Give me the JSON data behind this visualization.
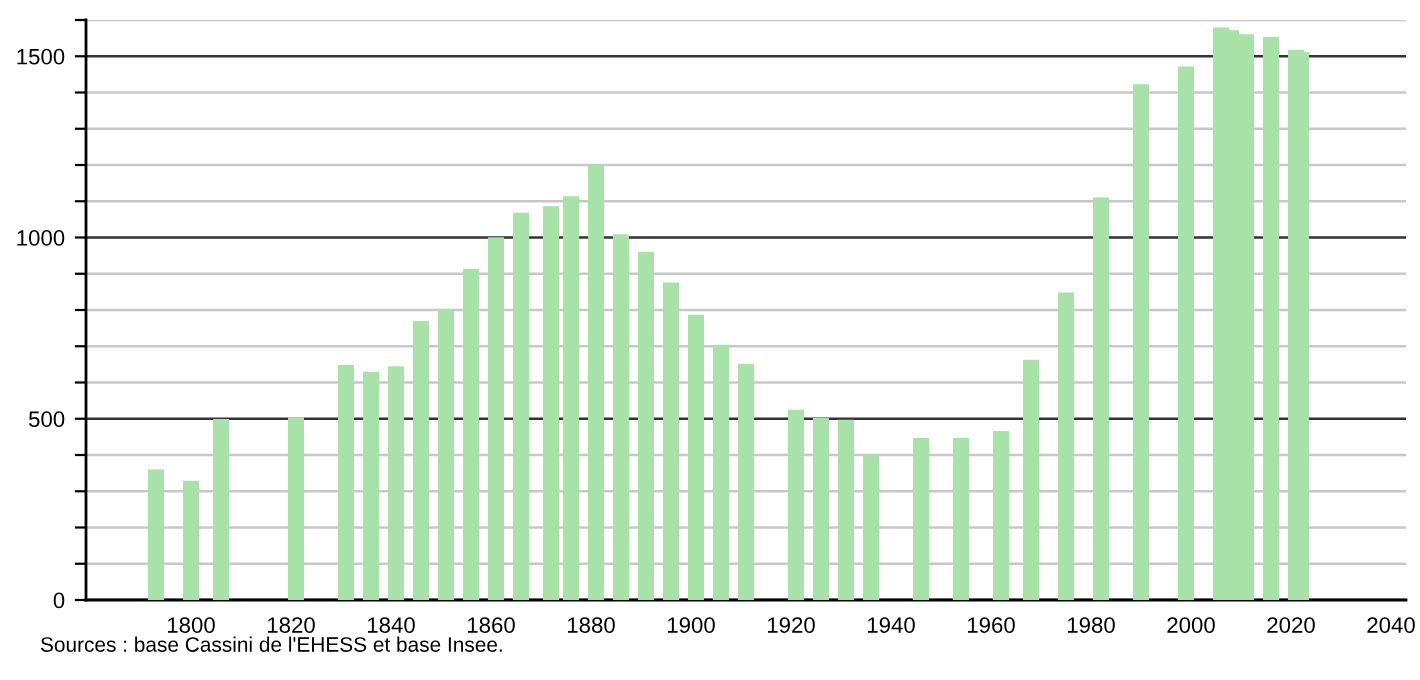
{
  "chart_data": {
    "type": "bar",
    "x": [
      1793,
      1800,
      1806,
      1821,
      1831,
      1836,
      1841,
      1846,
      1851,
      1856,
      1861,
      1866,
      1872,
      1876,
      1881,
      1886,
      1891,
      1896,
      1901,
      1906,
      1911,
      1921,
      1926,
      1931,
      1936,
      1946,
      1954,
      1962,
      1968,
      1975,
      1982,
      1990,
      1999,
      2006,
      2008,
      2011,
      2016,
      2021,
      2022
    ],
    "values": [
      360,
      329,
      499,
      504,
      648,
      630,
      645,
      770,
      802,
      913,
      1001,
      1068,
      1086,
      1114,
      1201,
      1009,
      961,
      876,
      787,
      704,
      652,
      525,
      502,
      497,
      401,
      447,
      447,
      466,
      663,
      848,
      1110,
      1423,
      1472,
      1579,
      1572,
      1561,
      1553,
      1518,
      1511
    ],
    "color": "#a8e2a8",
    "xlim": [
      1779,
      2043
    ],
    "xticks": [
      1800,
      1820,
      1840,
      1860,
      1880,
      1900,
      1920,
      1940,
      1960,
      1980,
      2000,
      2020,
      2040
    ],
    "ylim": [
      0,
      1600
    ],
    "yticks": [
      0,
      {
        "value": 100,
        "label": null
      },
      {
        "value": 200,
        "label": null
      },
      {
        "value": 300,
        "label": null
      },
      {
        "value": 400,
        "label": null
      },
      500,
      {
        "value": 600,
        "label": null
      },
      {
        "value": 700,
        "label": null
      },
      {
        "value": 800,
        "label": null
      },
      {
        "value": 900,
        "label": null
      },
      1000,
      {
        "value": 1100,
        "label": null
      },
      {
        "value": 1200,
        "label": null
      },
      {
        "value": 1300,
        "label": null
      },
      {
        "value": 1400,
        "label": null
      },
      1500,
      {
        "value": 1600,
        "label": null
      }
    ],
    "grid": "y",
    "legend": false,
    "annotations": [
      "Sources : base Cassini de l'EHESS et base Insee."
    ]
  }
}
